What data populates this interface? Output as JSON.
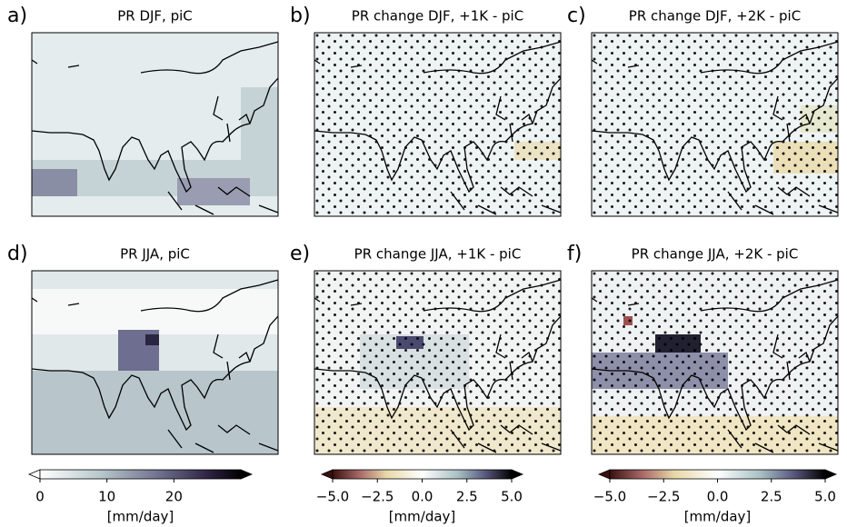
{
  "panels": [
    {
      "label": "a)",
      "title": "PR DJF, piC"
    },
    {
      "label": "b)",
      "title": "PR change DJF, +1K - piC"
    },
    {
      "label": "c)",
      "title": "PR change DJF, +2K - piC"
    },
    {
      "label": "d)",
      "title": "PR JJA, piC"
    },
    {
      "label": "e)",
      "title": "PR change JJA, +1K - piC"
    },
    {
      "label": "f)",
      "title": "PR change JJA, +2K - piC"
    }
  ],
  "colorbars": [
    {
      "label": "[mm/day]",
      "lim": [
        0,
        30
      ],
      "ticks": [
        0,
        10,
        20
      ]
    },
    {
      "label": "[mm/day]",
      "lim": [
        -5,
        5
      ],
      "ticks": [
        {
          "value": -5,
          "label": "−5.0"
        },
        {
          "value": -2.5,
          "label": "−2.5"
        },
        {
          "value": 0,
          "label": "0.0"
        },
        {
          "value": 2.5,
          "label": "2.5"
        },
        {
          "value": 5,
          "label": "5.0"
        }
      ]
    },
    {
      "label": "[mm/day]",
      "lim": [
        -5,
        5
      ],
      "ticks": [
        {
          "value": -5,
          "label": "−5.0"
        },
        {
          "value": -2.5,
          "label": "−2.5"
        },
        {
          "value": 0,
          "label": "0.0"
        },
        {
          "value": 2.5,
          "label": "2.5"
        },
        {
          "value": 5,
          "label": "5.0"
        }
      ]
    }
  ]
}
